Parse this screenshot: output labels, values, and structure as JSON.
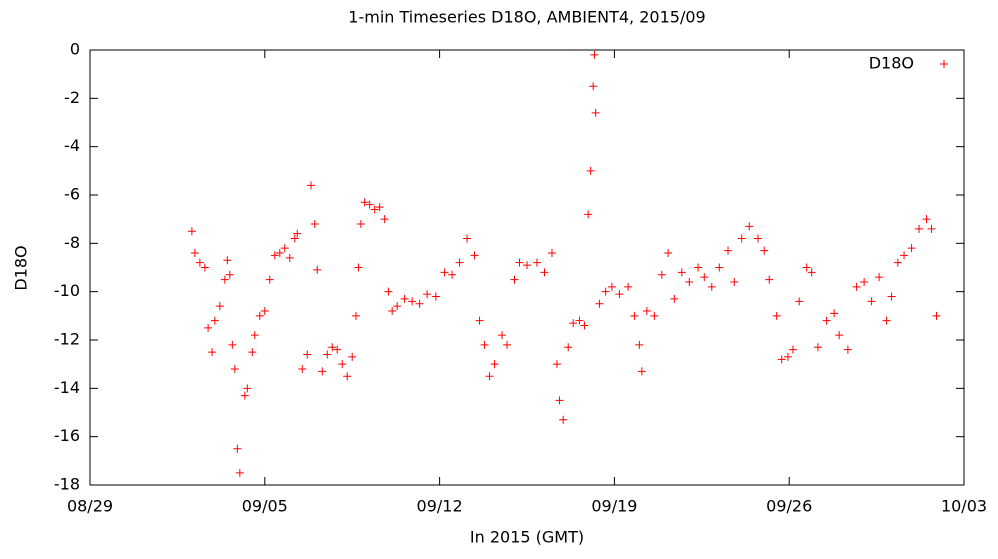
{
  "chart_data": {
    "type": "scatter",
    "title": "1-min Timeseries D18O, AMBIENT4, 2015/09",
    "xlabel": "In 2015 (GMT)",
    "ylabel": "D18O",
    "xlim": [
      0,
      35
    ],
    "ylim": [
      -18,
      0
    ],
    "xticks": [
      {
        "value": 0,
        "label": "08/29"
      },
      {
        "value": 7,
        "label": "09/05"
      },
      {
        "value": 14,
        "label": "09/12"
      },
      {
        "value": 21,
        "label": "09/19"
      },
      {
        "value": 28,
        "label": "09/26"
      },
      {
        "value": 35,
        "label": "10/03"
      }
    ],
    "yticks": [
      0,
      -2,
      -4,
      -6,
      -8,
      -10,
      -12,
      -14,
      -16,
      -18
    ],
    "legend": "top right",
    "series": [
      {
        "name": "D18O",
        "color": "#ff0000",
        "x": [
          4.08,
          4.2,
          4.4,
          4.6,
          4.73,
          4.89,
          5.0,
          5.2,
          5.4,
          5.5,
          5.6,
          5.7,
          5.8,
          5.9,
          6.0,
          6.2,
          6.3,
          6.5,
          6.6,
          6.8,
          7.0,
          7.2,
          7.4,
          7.6,
          7.8,
          8.0,
          8.2,
          8.3,
          8.5,
          8.7,
          8.85,
          9.0,
          9.1,
          9.3,
          9.5,
          9.7,
          9.9,
          10.1,
          10.3,
          10.5,
          10.65,
          10.75,
          10.85,
          11.0,
          11.2,
          11.4,
          11.6,
          11.8,
          11.95,
          12.1,
          12.3,
          12.6,
          12.9,
          13.2,
          13.5,
          13.85,
          14.2,
          14.5,
          14.8,
          15.1,
          15.4,
          15.6,
          15.8,
          16.0,
          16.2,
          16.5,
          16.7,
          17.0,
          17.2,
          17.5,
          17.9,
          18.2,
          18.5,
          18.7,
          18.8,
          18.95,
          19.15,
          19.35,
          19.6,
          19.8,
          19.95,
          20.05,
          20.15,
          20.2,
          20.25,
          20.4,
          20.65,
          20.9,
          21.2,
          21.55,
          21.8,
          22.0,
          22.1,
          22.3,
          22.6,
          22.9,
          23.15,
          23.4,
          23.7,
          24.0,
          24.35,
          24.6,
          24.9,
          25.2,
          25.55,
          25.8,
          26.1,
          26.4,
          26.75,
          27.0,
          27.2,
          27.5,
          27.7,
          27.95,
          28.15,
          28.4,
          28.7,
          28.9,
          29.15,
          29.5,
          29.8,
          30.0,
          30.35,
          30.7,
          31.0,
          31.3,
          31.6,
          31.9,
          32.1,
          32.35,
          32.6,
          32.9,
          33.2,
          33.5,
          33.7,
          33.9
        ],
        "values": [
          -7.5,
          -8.4,
          -8.8,
          -9.0,
          -11.5,
          -12.5,
          -11.2,
          -10.6,
          -9.5,
          -8.7,
          -9.3,
          -12.2,
          -13.2,
          -16.5,
          -17.5,
          -14.3,
          -14.0,
          -12.5,
          -11.8,
          -11.0,
          -10.8,
          -9.5,
          -8.5,
          -8.4,
          -8.2,
          -8.6,
          -7.8,
          -7.6,
          -13.2,
          -12.6,
          -5.6,
          -7.2,
          -9.1,
          -13.3,
          -12.6,
          -12.3,
          -12.4,
          -13.0,
          -13.5,
          -12.7,
          -11.0,
          -9.0,
          -7.2,
          -6.3,
          -6.4,
          -6.6,
          -6.5,
          -7.0,
          -10.0,
          -10.8,
          -10.6,
          -10.3,
          -10.4,
          -10.5,
          -10.1,
          -10.2,
          -9.2,
          -9.3,
          -8.8,
          -7.8,
          -8.5,
          -11.2,
          -12.2,
          -13.5,
          -13.0,
          -11.8,
          -12.2,
          -9.5,
          -8.8,
          -8.9,
          -8.8,
          -9.2,
          -8.4,
          -13.0,
          -14.5,
          -15.3,
          -12.3,
          -11.3,
          -11.2,
          -11.4,
          -6.8,
          -5.0,
          -1.5,
          -0.2,
          -2.6,
          -10.5,
          -10.0,
          -9.8,
          -10.1,
          -9.8,
          -11.0,
          -12.2,
          -13.3,
          -10.8,
          -11.0,
          -9.3,
          -8.4,
          -10.3,
          -9.2,
          -9.6,
          -9.0,
          -9.4,
          -9.8,
          -9.0,
          -8.3,
          -9.6,
          -7.8,
          -7.3,
          -7.8,
          -8.3,
          -9.5,
          -11.0,
          -12.8,
          -12.7,
          -12.4,
          -10.4,
          -9.0,
          -9.2,
          -12.3,
          -11.2,
          -10.9,
          -11.8,
          -12.4,
          -9.8,
          -9.6,
          -10.4,
          -9.4,
          -11.2,
          -10.2,
          -8.8,
          -8.5,
          -8.2,
          -7.4,
          -7.0,
          -7.4,
          -11.0
        ]
      }
    ]
  }
}
